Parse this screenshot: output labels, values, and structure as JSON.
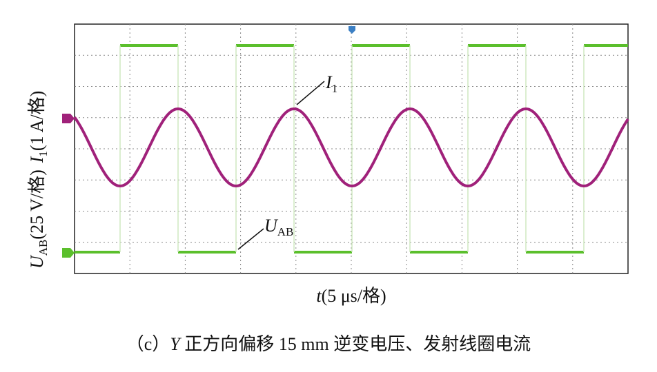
{
  "figure": {
    "y_label": {
      "u": "U",
      "u_sub": "AB",
      "u_scale": "(25 V/格)",
      "i": "I",
      "i_sub": "1",
      "i_scale": "(1 A/格)"
    },
    "x_label": {
      "t": "t",
      "scale": "(5 μs/格)"
    },
    "annotation_current": {
      "i": "I",
      "sub": "1"
    },
    "annotation_voltage": {
      "u": "U",
      "sub": "AB"
    },
    "caption": {
      "prefix": "（c）",
      "axis": "Y",
      "text": " 正方向偏移 15 mm 逆变电压、发射线圈电流"
    }
  }
}
